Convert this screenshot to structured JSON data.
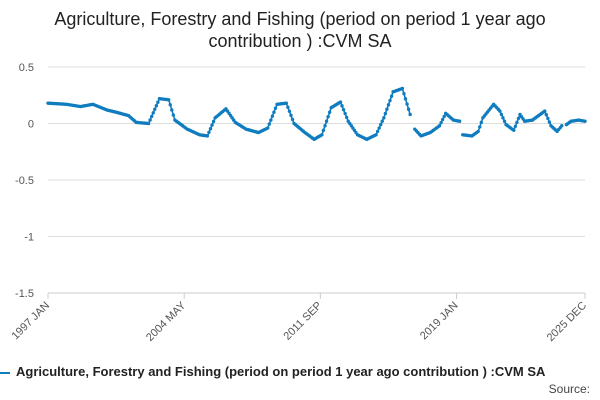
{
  "chart_data": {
    "type": "line",
    "title": "Agriculture, Forestry and Fishing (period on period 1 year ago contribution ) :CVM SA",
    "xlabel": "",
    "ylabel": "",
    "x_range": [
      "1997-01",
      "2025-12"
    ],
    "xtick_labels": [
      "1997 JAN",
      "2004 MAY",
      "2011 SEP",
      "2019 JAN",
      "2025 DEC"
    ],
    "xtick_dates": [
      "1997-01",
      "2004-05",
      "2011-09",
      "2019-01",
      "2025-12"
    ],
    "ylim": [
      -1.5,
      0.5
    ],
    "ytick_values": [
      0.5,
      0,
      -0.5,
      -1,
      -1.5
    ],
    "ytick_labels": [
      "0.5",
      "0",
      "-0.5",
      "-1",
      "-1.5"
    ],
    "grid": true,
    "legend_position": "bottom",
    "series": [
      {
        "name": "Agriculture, Forestry and Fishing (period on period 1 year ago contribution ) :CVM SA",
        "color": "#0f7cbf",
        "keypoints": [
          [
            "1997-01",
            0.18
          ],
          [
            "1998-01",
            0.17
          ],
          [
            "1998-10",
            0.15
          ],
          [
            "1999-06",
            0.17
          ],
          [
            "2000-03",
            0.12
          ],
          [
            "2000-09",
            0.1
          ],
          [
            "2001-05",
            0.07
          ],
          [
            "2001-10",
            0.01
          ],
          [
            "2002-06",
            0.0
          ],
          [
            "2003-01",
            0.22
          ],
          [
            "2003-07",
            0.21
          ],
          [
            "2003-11",
            0.03
          ],
          [
            "2004-07",
            -0.05
          ],
          [
            "2005-03",
            -0.1
          ],
          [
            "2005-08",
            -0.11
          ],
          [
            "2006-01",
            0.05
          ],
          [
            "2006-08",
            0.13
          ],
          [
            "2007-02",
            0.01
          ],
          [
            "2007-09",
            -0.05
          ],
          [
            "2008-05",
            -0.08
          ],
          [
            "2008-11",
            -0.04
          ],
          [
            "2009-05",
            0.17
          ],
          [
            "2009-11",
            0.18
          ],
          [
            "2010-04",
            0.0
          ],
          [
            "2010-11",
            -0.08
          ],
          [
            "2011-05",
            -0.14
          ],
          [
            "2011-10",
            -0.1
          ],
          [
            "2012-04",
            0.14
          ],
          [
            "2012-10",
            0.19
          ],
          [
            "2013-03",
            0.02
          ],
          [
            "2013-09",
            -0.1
          ],
          [
            "2014-03",
            -0.14
          ],
          [
            "2014-09",
            -0.1
          ],
          [
            "2015-02",
            0.05
          ],
          [
            "2015-08",
            0.28
          ],
          [
            "2016-02",
            0.31
          ],
          [
            "2016-07",
            0.08
          ],
          [
            "2016-09",
            null
          ],
          [
            "2016-10",
            -0.05
          ],
          [
            "2017-02",
            -0.11
          ],
          [
            "2017-08",
            -0.08
          ],
          [
            "2018-02",
            -0.02
          ],
          [
            "2018-06",
            0.09
          ],
          [
            "2018-11",
            0.03
          ],
          [
            "2019-03",
            0.02
          ],
          [
            "2019-04",
            null
          ],
          [
            "2019-05",
            -0.1
          ],
          [
            "2019-11",
            -0.11
          ],
          [
            "2020-03",
            -0.07
          ],
          [
            "2020-06",
            0.05
          ],
          [
            "2021-01",
            0.17
          ],
          [
            "2021-05",
            0.11
          ],
          [
            "2021-09",
            -0.01
          ],
          [
            "2022-02",
            -0.06
          ],
          [
            "2022-06",
            0.08
          ],
          [
            "2022-09",
            0.02
          ],
          [
            "2023-02",
            0.03
          ],
          [
            "2023-10",
            0.11
          ],
          [
            "2024-02",
            -0.02
          ],
          [
            "2024-06",
            -0.07
          ],
          [
            "2024-09",
            -0.02
          ],
          [
            "2024-11",
            null
          ],
          [
            "2024-12",
            -0.01
          ],
          [
            "2025-03",
            0.02
          ],
          [
            "2025-08",
            0.03
          ],
          [
            "2025-12",
            0.02
          ]
        ]
      }
    ]
  },
  "source_label": "Source:"
}
